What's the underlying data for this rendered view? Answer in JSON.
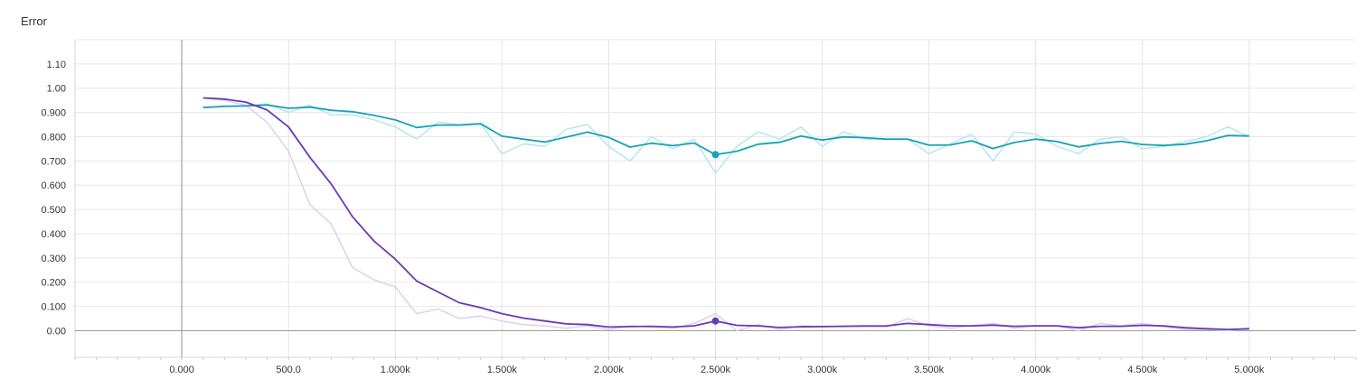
{
  "chart_data": {
    "type": "line",
    "title": "Error",
    "xlabel": "",
    "ylabel": "",
    "xlim": [
      -500,
      5500
    ],
    "ylim": [
      -0.11,
      1.2
    ],
    "grid": true,
    "x_ticks": [
      0,
      500,
      1000,
      1500,
      2000,
      2500,
      3000,
      3500,
      4000,
      4500,
      5000
    ],
    "x_tick_labels": [
      "0.000",
      "500.0",
      "1.000k",
      "1.500k",
      "2.000k",
      "2.500k",
      "3.000k",
      "3.500k",
      "4.000k",
      "4.500k",
      "5.000k"
    ],
    "y_ticks": [
      0.0,
      0.1,
      0.2,
      0.3,
      0.4,
      0.5,
      0.6,
      0.7,
      0.8,
      0.9,
      1.0,
      1.1
    ],
    "y_tick_labels": [
      "0.00",
      "0.100",
      "0.200",
      "0.300",
      "0.400",
      "0.500",
      "0.600",
      "0.700",
      "0.800",
      "0.900",
      "1.00",
      "1.10"
    ],
    "x": [
      100,
      200,
      300,
      400,
      500,
      600,
      700,
      800,
      900,
      1000,
      1100,
      1200,
      1300,
      1400,
      1500,
      1600,
      1700,
      1800,
      1900,
      2000,
      2100,
      2200,
      2300,
      2400,
      2500,
      2600,
      2700,
      2800,
      2900,
      3000,
      3100,
      3200,
      3300,
      3400,
      3500,
      3600,
      3700,
      3800,
      3900,
      4000,
      4100,
      4200,
      4300,
      4400,
      4500,
      4600,
      4700,
      4800,
      4900,
      5000
    ],
    "series": [
      {
        "color": "#17a2b8",
        "raw_color": "#b7e6ec",
        "smoothed": [
          0.92,
          0.925,
          0.927,
          0.931,
          0.917,
          0.922,
          0.909,
          0.903,
          0.888,
          0.869,
          0.838,
          0.848,
          0.848,
          0.853,
          0.802,
          0.79,
          0.778,
          0.798,
          0.819,
          0.797,
          0.757,
          0.773,
          0.763,
          0.774,
          0.726,
          0.74,
          0.769,
          0.777,
          0.803,
          0.786,
          0.799,
          0.796,
          0.79,
          0.79,
          0.765,
          0.766,
          0.783,
          0.751,
          0.776,
          0.79,
          0.78,
          0.758,
          0.772,
          0.781,
          0.768,
          0.764,
          0.769,
          0.783,
          0.805,
          0.803
        ],
        "raw": [
          0.92,
          0.927,
          0.928,
          0.935,
          0.9,
          0.93,
          0.89,
          0.89,
          0.87,
          0.84,
          0.79,
          0.86,
          0.85,
          0.855,
          0.73,
          0.77,
          0.76,
          0.83,
          0.85,
          0.76,
          0.7,
          0.8,
          0.75,
          0.79,
          0.65,
          0.76,
          0.82,
          0.79,
          0.84,
          0.76,
          0.82,
          0.79,
          0.79,
          0.79,
          0.73,
          0.77,
          0.81,
          0.7,
          0.82,
          0.81,
          0.76,
          0.73,
          0.79,
          0.8,
          0.75,
          0.76,
          0.78,
          0.8,
          0.84,
          0.8
        ],
        "marker": {
          "x": 2500,
          "y": 0.726
        }
      },
      {
        "color": "#673ab7",
        "raw_color": "#d9d2ee",
        "smoothed": [
          0.96,
          0.955,
          0.943,
          0.91,
          0.84,
          0.715,
          0.605,
          0.47,
          0.37,
          0.295,
          0.205,
          0.16,
          0.115,
          0.095,
          0.07,
          0.052,
          0.04,
          0.028,
          0.025,
          0.015,
          0.017,
          0.018,
          0.015,
          0.02,
          0.04,
          0.022,
          0.02,
          0.013,
          0.016,
          0.017,
          0.018,
          0.019,
          0.02,
          0.03,
          0.025,
          0.02,
          0.02,
          0.023,
          0.018,
          0.02,
          0.02,
          0.012,
          0.018,
          0.018,
          0.022,
          0.02,
          0.012,
          0.008,
          0.005,
          0.008
        ],
        "raw": [
          0.96,
          0.95,
          0.93,
          0.86,
          0.74,
          0.52,
          0.44,
          0.26,
          0.21,
          0.18,
          0.07,
          0.09,
          0.05,
          0.06,
          0.04,
          0.025,
          0.02,
          0.01,
          0.02,
          0.005,
          0.02,
          0.015,
          0.01,
          0.03,
          0.07,
          0.0,
          0.025,
          0.005,
          0.02,
          0.015,
          0.02,
          0.02,
          0.015,
          0.05,
          0.02,
          0.01,
          0.02,
          0.03,
          0.01,
          0.02,
          0.02,
          0.0,
          0.03,
          0.02,
          0.03,
          0.015,
          0.005,
          0.005,
          0.0,
          0.01
        ],
        "marker": {
          "x": 2500,
          "y": 0.04
        }
      }
    ]
  }
}
